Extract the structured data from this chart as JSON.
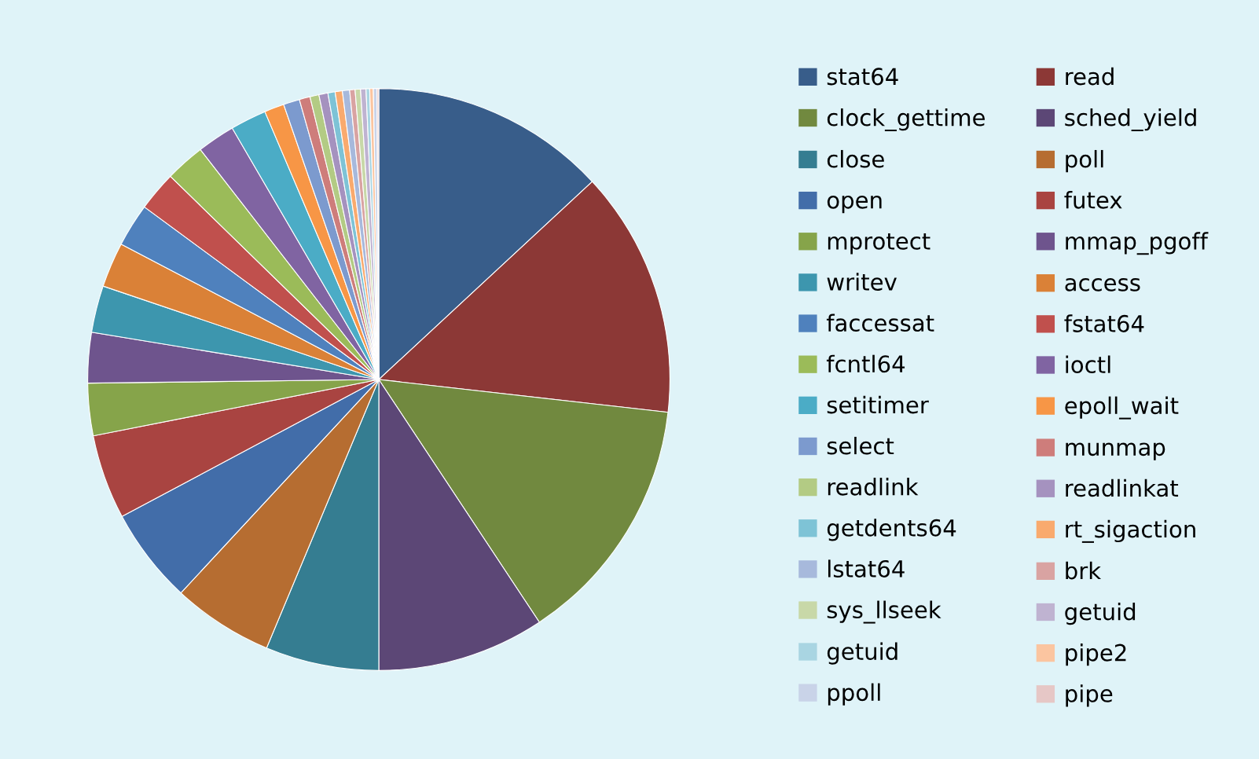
{
  "chart_data": {
    "type": "pie",
    "categories": [
      "stat64",
      "read",
      "clock_gettime",
      "sched_yield",
      "close",
      "poll",
      "open",
      "futex",
      "mprotect",
      "mmap_pgoff",
      "writev",
      "access",
      "faccessat",
      "fstat64",
      "fcntl64",
      "ioctl",
      "setitimer",
      "epoll_wait",
      "select",
      "munmap",
      "readlink",
      "readlinkat",
      "getdents64",
      "rt_sigaction",
      "lstat64",
      "brk",
      "sys_llseek",
      "getuid",
      "getuid",
      "pipe2",
      "ppoll",
      "pipe"
    ],
    "values": [
      13.1,
      13.7,
      13.9,
      9.3,
      6.3,
      5.6,
      5.3,
      4.7,
      2.9,
      2.8,
      2.6,
      2.5,
      2.4,
      2.2,
      2.2,
      2.1,
      2.0,
      1.1,
      0.9,
      0.6,
      0.5,
      0.5,
      0.4,
      0.4,
      0.4,
      0.3,
      0.3,
      0.3,
      0.2,
      0.2,
      0.2,
      0.1
    ],
    "colors": [
      "#385d8a",
      "#8c3836",
      "#71893f",
      "#5c4776",
      "#357d91",
      "#b66d31",
      "#426da9",
      "#a94441",
      "#86a44a",
      "#6e548d",
      "#3d96ae",
      "#da8137",
      "#4f81bd",
      "#c0504d",
      "#9bbb59",
      "#8064a2",
      "#4bacc6",
      "#f79646",
      "#7c9ace",
      "#ce7d7b",
      "#b3cb84",
      "#a592bf",
      "#7ec3d6",
      "#f9aa6e",
      "#a7b9dc",
      "#d9a3a2",
      "#c8d8a8",
      "#bfb3d1",
      "#a9d5e2",
      "#fbc5a0",
      "#c9d3e8",
      "#e6c7c6"
    ],
    "legend": "right"
  }
}
